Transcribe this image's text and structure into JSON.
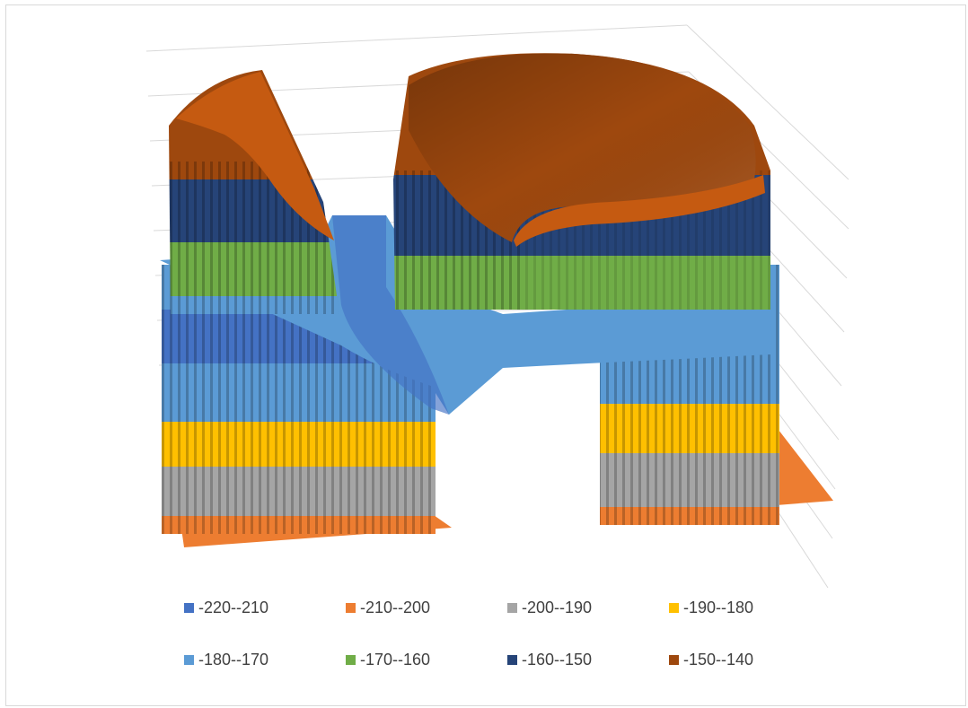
{
  "chart_data": {
    "type": "surface-3d",
    "title": "",
    "xlabel": "",
    "ylabel": "",
    "zlabel": "",
    "axes_visible": false,
    "gridlines": true,
    "z_range": [
      -220,
      -140
    ],
    "band_step": 10,
    "legend_position": "bottom",
    "legend": [
      {
        "label": "-220--210",
        "color": "#4472C4"
      },
      {
        "label": "-210--200",
        "color": "#ED7D31"
      },
      {
        "label": "-200--190",
        "color": "#A5A5A5"
      },
      {
        "label": "-190--180",
        "color": "#FFC000"
      },
      {
        "label": "-180--170",
        "color": "#5B9BD5"
      },
      {
        "label": "-170--160",
        "color": "#70AD47"
      },
      {
        "label": "-160--150",
        "color": "#264478"
      },
      {
        "label": "-150--140",
        "color": "#9E480E"
      }
    ]
  }
}
